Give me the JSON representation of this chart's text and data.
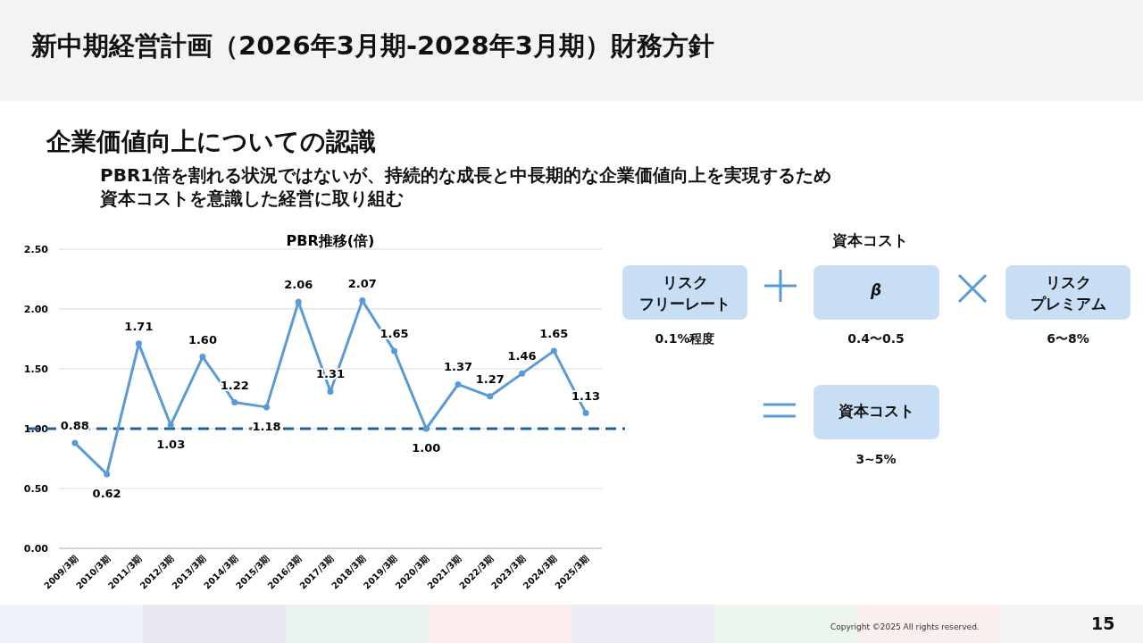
{
  "chart_data": [
    {
      "type": "line",
      "title": "PBR推移(倍)",
      "categories": [
        "2009/3期",
        "2010/3期",
        "2011/3期",
        "2012/3期",
        "2013/3期",
        "2014/3期",
        "2015/3期",
        "2016/3期",
        "2017/3期",
        "2018/3期",
        "2019/3期",
        "2020/3期",
        "2021/3期",
        "2022/3期",
        "2023/3期",
        "2024/3期",
        "2025/3期"
      ],
      "values": [
        0.88,
        0.62,
        1.71,
        1.03,
        1.6,
        1.22,
        1.18,
        2.06,
        1.31,
        2.07,
        1.65,
        1.0,
        1.37,
        1.27,
        1.46,
        1.65,
        1.13
      ],
      "value_labels": [
        "0.88",
        "0.62",
        "1.71",
        "1.03",
        "1.60",
        "1.22",
        "1.18",
        "2.06",
        "1.31",
        "2.07",
        "1.65",
        "1.00",
        "1.37",
        "1.27",
        "1.46",
        "1.65",
        "1.13"
      ],
      "color": "#5b9bd5",
      "marker": "circle",
      "grid": "y",
      "ylim": [
        0,
        2.5
      ],
      "yticks": [
        {
          "value": 0,
          "label": "0.00"
        },
        {
          "value": 0.5,
          "label": "0.50"
        },
        {
          "value": 1,
          "label": "1.00"
        },
        {
          "value": 1.5,
          "label": "1.50"
        },
        {
          "value": 2,
          "label": "2.00"
        },
        {
          "value": 2.5,
          "label": "2.50"
        }
      ],
      "ref_lines": [
        {
          "axis": "y",
          "value": 1,
          "color": "#1f5f9e",
          "line_style": "dashed"
        }
      ],
      "annotations": [
        "新中期経営計画（2026年3月期-2028年3月期）財務方針",
        "企業価値向上についての認識",
        "PBR1倍を割れる状況ではないが、持続的な成長と中長期的な企業価値向上を実現するため",
        "資本コストを意識した経営に取り組む",
        "Copyright ©2025 All rights reserved.",
        "15"
      ]
    },
    {
      "type": "other",
      "title": "資本コスト",
      "annotations": [
        "リスク",
        "フリーレート",
        "0.1%程度",
        "β",
        "0.4〜0.5",
        "リスク",
        "プレミアム",
        "6〜8%",
        "資本コスト",
        "3~5%"
      ]
    }
  ]
}
